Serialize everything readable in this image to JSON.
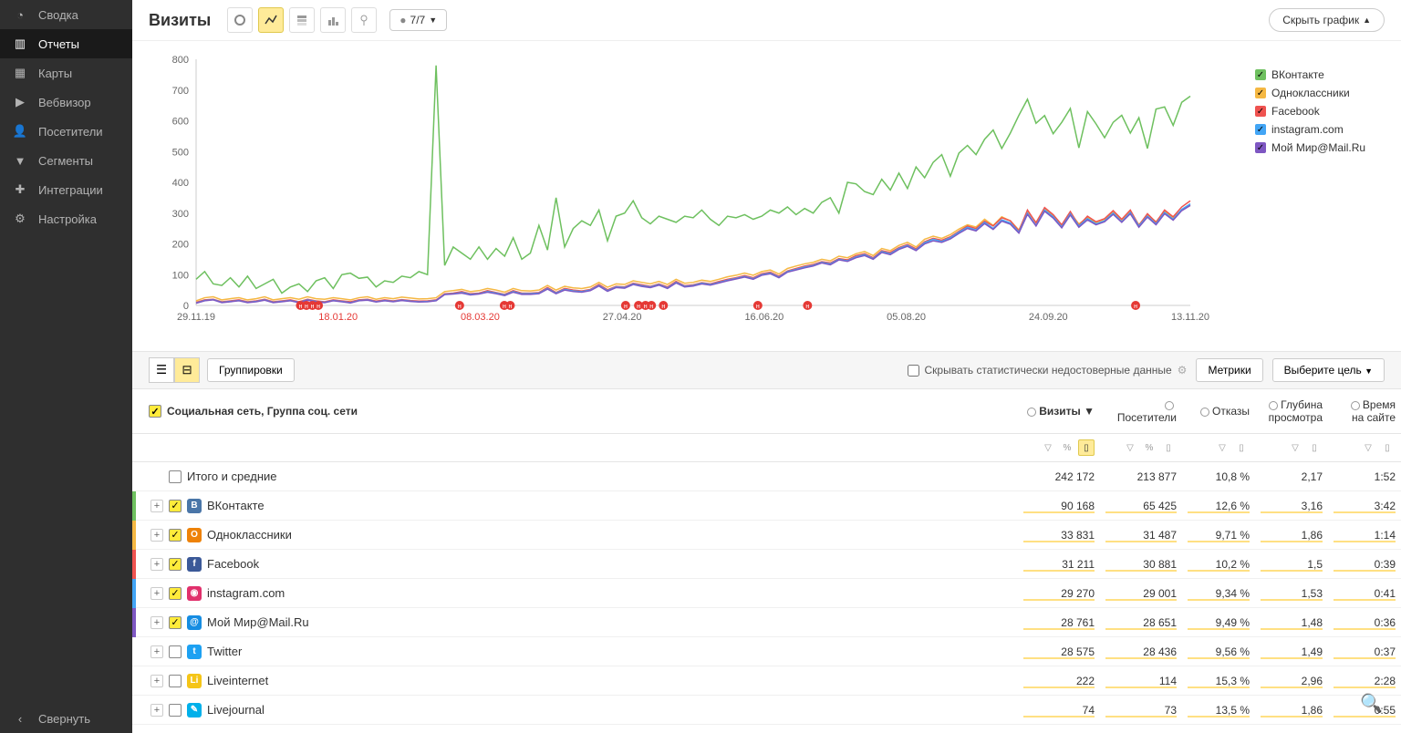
{
  "sidebar": {
    "items": [
      {
        "label": "Сводка",
        "icon": "gauge"
      },
      {
        "label": "Отчеты",
        "icon": "bar-chart",
        "active": true
      },
      {
        "label": "Карты",
        "icon": "grid"
      },
      {
        "label": "Вебвизор",
        "icon": "play"
      },
      {
        "label": "Посетители",
        "icon": "person"
      },
      {
        "label": "Сегменты",
        "icon": "funnel"
      },
      {
        "label": "Интеграции",
        "icon": "plus"
      },
      {
        "label": "Настройка",
        "icon": "gear"
      }
    ],
    "collapse_label": "Свернуть"
  },
  "header": {
    "title": "Визиты",
    "dim_label": "7/7",
    "hide_chart_label": "Скрыть график"
  },
  "chart": {
    "type": "line",
    "ylim": [
      0,
      800
    ],
    "ytick_step": 100,
    "yticks": [
      0,
      100,
      200,
      300,
      400,
      500,
      600,
      700,
      800
    ],
    "x_labels": [
      "29.11.19",
      "18.01.20",
      "08.03.20",
      "27.04.20",
      "16.06.20",
      "05.08.20",
      "24.09.20",
      "13.11.20"
    ],
    "x_highlighted": [
      1,
      2
    ],
    "background_color": "#ffffff",
    "grid_color": "#dddddd",
    "axis_color": "#cccccc",
    "marker_color": "#e53935",
    "markers_x": [
      0.105,
      0.111,
      0.117,
      0.123,
      0.265,
      0.31,
      0.316,
      0.432,
      0.445,
      0.452,
      0.458,
      0.47,
      0.565,
      0.615,
      0.945
    ],
    "series": [
      {
        "name": "ВКонтакте",
        "color": "#6ec05f",
        "checked": true,
        "values": [
          85,
          110,
          70,
          65,
          90,
          60,
          95,
          55,
          70,
          85,
          40,
          60,
          70,
          45,
          80,
          90,
          55,
          100,
          105,
          88,
          92,
          60,
          80,
          75,
          95,
          90,
          110,
          100,
          780,
          130,
          190,
          170,
          150,
          190,
          150,
          185,
          160,
          220,
          150,
          170,
          260,
          180,
          350,
          190,
          250,
          275,
          260,
          310,
          210,
          290,
          300,
          340,
          285,
          265,
          290,
          280,
          270,
          290,
          285,
          310,
          280,
          260,
          290,
          285,
          295,
          280,
          290,
          310,
          300,
          320,
          295,
          315,
          300,
          335,
          350,
          300,
          400,
          395,
          370,
          360,
          410,
          375,
          430,
          380,
          450,
          415,
          465,
          490,
          420,
          495,
          520,
          490,
          540,
          570,
          510,
          560,
          618,
          670,
          592,
          617,
          558,
          595,
          640,
          512,
          630,
          590,
          545,
          595,
          618,
          560,
          610,
          510,
          638,
          645,
          585,
          660,
          680
        ]
      },
      {
        "name": "Одноклассники",
        "color": "#f5b843",
        "checked": true,
        "values": [
          15,
          25,
          28,
          18,
          22,
          25,
          18,
          22,
          28,
          18,
          22,
          25,
          20,
          28,
          22,
          20,
          25,
          22,
          18,
          25,
          28,
          20,
          25,
          22,
          27,
          24,
          21,
          22,
          25,
          45,
          48,
          52,
          45,
          48,
          55,
          50,
          43,
          55,
          48,
          47,
          50,
          65,
          50,
          62,
          57,
          55,
          60,
          75,
          59,
          70,
          68,
          80,
          75,
          70,
          78,
          68,
          85,
          72,
          75,
          82,
          78,
          85,
          93,
          98,
          105,
          98,
          110,
          115,
          102,
          120,
          128,
          135,
          140,
          150,
          145,
          160,
          155,
          168,
          175,
          162,
          185,
          178,
          195,
          205,
          190,
          215,
          225,
          218,
          230,
          248,
          262,
          255,
          280,
          260,
          288,
          275,
          245,
          305,
          270,
          315,
          292,
          258,
          300,
          265,
          285,
          270,
          280,
          302,
          278,
          305,
          262,
          295,
          272,
          305,
          285,
          310,
          325
        ]
      },
      {
        "name": "Facebook",
        "color": "#ef5350",
        "checked": true,
        "values": [
          10,
          18,
          20,
          12,
          15,
          18,
          12,
          15,
          20,
          12,
          15,
          18,
          12,
          20,
          15,
          12,
          18,
          15,
          12,
          18,
          20,
          14,
          18,
          15,
          19,
          16,
          14,
          15,
          18,
          38,
          40,
          45,
          38,
          40,
          48,
          42,
          36,
          48,
          40,
          40,
          42,
          58,
          42,
          55,
          50,
          47,
          52,
          68,
          51,
          62,
          60,
          72,
          67,
          62,
          70,
          60,
          78,
          64,
          67,
          74,
          70,
          78,
          85,
          90,
          97,
          90,
          103,
          108,
          95,
          112,
          120,
          128,
          133,
          142,
          138,
          152,
          148,
          162,
          168,
          155,
          178,
          172,
          188,
          198,
          184,
          207,
          218,
          212,
          223,
          241,
          258,
          250,
          274,
          258,
          285,
          275,
          242,
          310,
          268,
          318,
          295,
          262,
          305,
          260,
          290,
          272,
          282,
          308,
          280,
          310,
          260,
          298,
          270,
          310,
          288,
          320,
          340
        ]
      },
      {
        "name": "instagram.com",
        "color": "#42a5f5",
        "checked": true,
        "values": [
          8,
          16,
          19,
          10,
          13,
          16,
          10,
          13,
          18,
          10,
          13,
          16,
          10,
          18,
          13,
          10,
          16,
          13,
          9,
          16,
          18,
          12,
          16,
          13,
          17,
          14,
          12,
          13,
          16,
          36,
          38,
          42,
          36,
          38,
          45,
          40,
          34,
          45,
          38,
          38,
          40,
          55,
          40,
          52,
          47,
          45,
          50,
          65,
          48,
          60,
          58,
          70,
          64,
          60,
          68,
          57,
          75,
          62,
          65,
          72,
          68,
          75,
          82,
          88,
          94,
          87,
          100,
          105,
          92,
          110,
          117,
          125,
          130,
          140,
          135,
          150,
          145,
          158,
          165,
          152,
          175,
          168,
          185,
          195,
          180,
          204,
          215,
          208,
          220,
          238,
          254,
          245,
          270,
          250,
          278,
          268,
          238,
          300,
          260,
          310,
          288,
          255,
          298,
          258,
          282,
          265,
          275,
          300,
          272,
          302,
          258,
          290,
          265,
          302,
          280,
          312,
          330
        ]
      },
      {
        "name": "Мой Мир@Mail.Ru",
        "color": "#7e57c2",
        "checked": true,
        "values": [
          7,
          15,
          18,
          9,
          12,
          15,
          9,
          12,
          17,
          9,
          12,
          15,
          9,
          17,
          12,
          9,
          15,
          12,
          8,
          15,
          17,
          11,
          15,
          12,
          16,
          13,
          11,
          12,
          15,
          35,
          37,
          40,
          34,
          37,
          43,
          38,
          32,
          43,
          36,
          36,
          38,
          53,
          38,
          50,
          45,
          43,
          48,
          63,
          46,
          58,
          56,
          68,
          62,
          58,
          66,
          55,
          73,
          60,
          63,
          70,
          66,
          73,
          80,
          86,
          92,
          85,
          98,
          103,
          90,
          108,
          115,
          122,
          128,
          138,
          132,
          148,
          143,
          155,
          162,
          150,
          172,
          165,
          182,
          192,
          178,
          200,
          210,
          205,
          216,
          234,
          250,
          242,
          266,
          247,
          274,
          264,
          235,
          296,
          258,
          306,
          284,
          252,
          294,
          254,
          278,
          262,
          272,
          296,
          270,
          298,
          254,
          287,
          262,
          298,
          277,
          308,
          325
        ]
      }
    ]
  },
  "toolbar": {
    "group_label": "Группировки",
    "hide_insignificant_label": "Скрывать статистически недостоверные данные",
    "metrics_label": "Метрики",
    "goal_label": "Выберите цель"
  },
  "table": {
    "dimension_label": "Социальная сеть, Группа соц. сети",
    "columns": [
      {
        "label": "Визиты",
        "sorted": true
      },
      {
        "label": "Посетители"
      },
      {
        "label": "Отказы"
      },
      {
        "label": "Глубина просмотра",
        "multiline": true
      },
      {
        "label": "Время на сайте",
        "multiline": true
      }
    ],
    "totals_label": "Итого и средние",
    "totals": {
      "visits": "242 172",
      "visitors": "213 877",
      "bounce": "10,8 %",
      "depth": "2,17",
      "time": "1:52"
    },
    "rows": [
      {
        "name": "ВКонтакте",
        "iconBg": "#4a76a8",
        "iconTxt": "B",
        "color": "#6ec05f",
        "checked": true,
        "visits": "90 168",
        "visitors": "65 425",
        "bounce": "12,6 %",
        "depth": "3,16",
        "time": "3:42"
      },
      {
        "name": "Одноклассники",
        "iconBg": "#ee8208",
        "iconTxt": "O",
        "color": "#f5b843",
        "checked": true,
        "visits": "33 831",
        "visitors": "31 487",
        "bounce": "9,71 %",
        "depth": "1,86",
        "time": "1:14"
      },
      {
        "name": "Facebook",
        "iconBg": "#3b5998",
        "iconTxt": "f",
        "color": "#ef5350",
        "checked": true,
        "visits": "31 211",
        "visitors": "30 881",
        "bounce": "10,2 %",
        "depth": "1,5",
        "time": "0:39"
      },
      {
        "name": "instagram.com",
        "iconBg": "#e1306c",
        "iconTxt": "◉",
        "color": "#42a5f5",
        "checked": true,
        "visits": "29 270",
        "visitors": "29 001",
        "bounce": "9,34 %",
        "depth": "1,53",
        "time": "0:41"
      },
      {
        "name": "Мой Мир@Mail.Ru",
        "iconBg": "#168de2",
        "iconTxt": "@",
        "color": "#7e57c2",
        "checked": true,
        "visits": "28 761",
        "visitors": "28 651",
        "bounce": "9,49 %",
        "depth": "1,48",
        "time": "0:36"
      },
      {
        "name": "Twitter",
        "iconBg": "#1da1f2",
        "iconTxt": "t",
        "color": null,
        "checked": false,
        "visits": "28 575",
        "visitors": "28 436",
        "bounce": "9,56 %",
        "depth": "1,49",
        "time": "0:37"
      },
      {
        "name": "Liveinternet",
        "iconBg": "#f5c518",
        "iconTxt": "Li",
        "color": null,
        "checked": false,
        "visits": "222",
        "visitors": "114",
        "bounce": "15,3 %",
        "depth": "2,96",
        "time": "2:28"
      },
      {
        "name": "Livejournal",
        "iconBg": "#00b0ea",
        "iconTxt": "✎",
        "color": null,
        "checked": false,
        "visits": "74",
        "visitors": "73",
        "bounce": "13,5 %",
        "depth": "1,86",
        "time": "0:55"
      }
    ]
  }
}
